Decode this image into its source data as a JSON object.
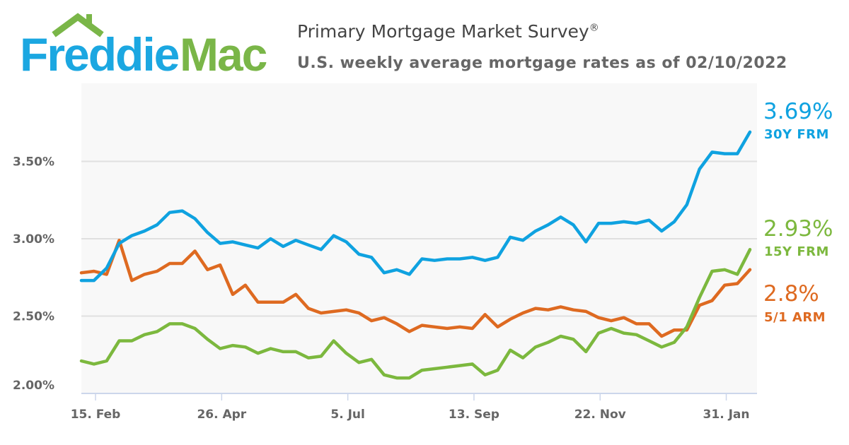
{
  "logo": {
    "part1": "Freddie",
    "part2": "Mac",
    "color1": "#1ba7e1",
    "color2": "#7ab648"
  },
  "header": {
    "title": "Primary Mortgage Market Survey",
    "title_mark": "®",
    "subtitle": "U.S. weekly average mortgage rates as of 02/10/2022"
  },
  "chart_data": {
    "type": "line",
    "title": "Primary Mortgage Market Survey®",
    "subtitle": "U.S. weekly average mortgage rates as of 02/10/2022",
    "ylim": [
      2.0,
      4.0
    ],
    "y_ticks": [
      {
        "v": 2.0,
        "label": "2.00%"
      },
      {
        "v": 2.5,
        "label": "2.50%"
      },
      {
        "v": 3.0,
        "label": "3.00%"
      },
      {
        "v": 3.5,
        "label": "3.50%"
      }
    ],
    "x_ticks": [
      {
        "date": "2021-02-15",
        "label": "15. Feb"
      },
      {
        "date": "2021-04-26",
        "label": "26. Apr"
      },
      {
        "date": "2021-07-05",
        "label": "5. Jul"
      },
      {
        "date": "2021-09-13",
        "label": "13. Sep"
      },
      {
        "date": "2021-11-22",
        "label": "22. Nov"
      },
      {
        "date": "2022-01-31",
        "label": "31. Jan"
      }
    ],
    "grid": true,
    "x_start": "2021-02-04",
    "x_end": "2022-02-10",
    "interval_days": 7,
    "series": [
      {
        "name": "30Y FRM",
        "latest": "3.69%",
        "color": "#0fa2e0",
        "values": [
          2.73,
          2.73,
          2.81,
          2.97,
          3.02,
          3.05,
          3.09,
          3.17,
          3.18,
          3.13,
          3.04,
          2.97,
          2.98,
          2.96,
          2.94,
          3.0,
          2.95,
          2.99,
          2.96,
          2.93,
          3.02,
          2.98,
          2.9,
          2.88,
          2.78,
          2.8,
          2.77,
          2.87,
          2.86,
          2.87,
          2.87,
          2.88,
          2.86,
          2.88,
          3.01,
          2.99,
          3.05,
          3.09,
          3.14,
          3.09,
          2.98,
          3.1,
          3.1,
          3.11,
          3.1,
          3.12,
          3.05,
          3.11,
          3.22,
          3.45,
          3.56,
          3.55,
          3.55,
          3.69
        ]
      },
      {
        "name": "15Y FRM",
        "latest": "2.93%",
        "color": "#7cb83e",
        "values": [
          2.21,
          2.19,
          2.21,
          2.34,
          2.34,
          2.38,
          2.4,
          2.45,
          2.45,
          2.42,
          2.35,
          2.29,
          2.31,
          2.3,
          2.26,
          2.29,
          2.27,
          2.27,
          2.23,
          2.24,
          2.34,
          2.26,
          2.2,
          2.22,
          2.12,
          2.1,
          2.1,
          2.15,
          2.16,
          2.17,
          2.18,
          2.19,
          2.12,
          2.15,
          2.28,
          2.23,
          2.3,
          2.33,
          2.37,
          2.35,
          2.27,
          2.39,
          2.42,
          2.39,
          2.38,
          2.34,
          2.3,
          2.33,
          2.43,
          2.62,
          2.79,
          2.8,
          2.77,
          2.93
        ]
      },
      {
        "name": "5/1 ARM",
        "latest": "2.8%",
        "color": "#de6a21",
        "values": [
          2.78,
          2.79,
          2.77,
          2.99,
          2.73,
          2.77,
          2.79,
          2.84,
          2.84,
          2.92,
          2.8,
          2.83,
          2.64,
          2.7,
          2.59,
          2.59,
          2.59,
          2.64,
          2.55,
          2.52,
          2.53,
          2.54,
          2.52,
          2.47,
          2.49,
          2.45,
          2.4,
          2.44,
          2.43,
          2.42,
          2.43,
          2.42,
          2.51,
          2.43,
          2.48,
          2.52,
          2.55,
          2.54,
          2.56,
          2.54,
          2.53,
          2.49,
          2.47,
          2.49,
          2.45,
          2.45,
          2.37,
          2.41,
          2.41,
          2.57,
          2.6,
          2.7,
          2.71,
          2.8
        ]
      }
    ]
  }
}
